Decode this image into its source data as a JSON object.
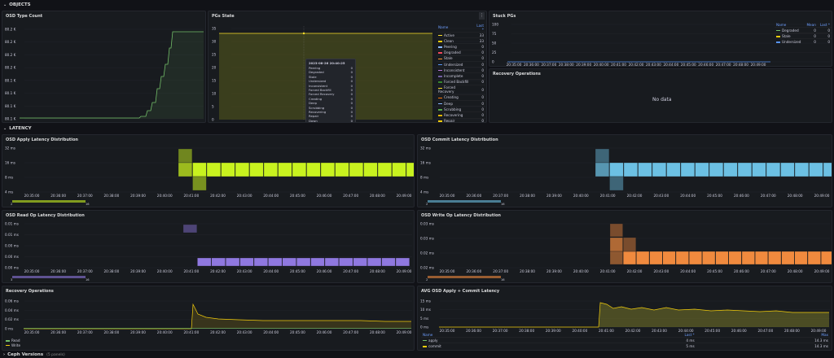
{
  "rows": {
    "objects": "OBJECTS",
    "latency": "LATENCY",
    "ceph_versions": "Ceph Versions",
    "ceph_versions_count": "(5 panels)"
  },
  "time_axis": {
    "short": [
      "20:35",
      "20:40",
      "20:45"
    ],
    "long": [
      "20:35:00",
      "20:36:00",
      "20:37:00",
      "20:38:00",
      "20:39:00",
      "20:40:00",
      "20:41:00",
      "20:42:00",
      "20:43:00",
      "20:44:00",
      "20:45:00",
      "20:46:00",
      "20:47:00",
      "20:48:00",
      "20:49:00"
    ]
  },
  "panels": {
    "osd_type_count": {
      "title": "OSD Type Count",
      "y_ticks": [
        "80.2 K",
        "80.2 K",
        "80.2 K",
        "80.2 K",
        "80.1 K",
        "80.1 K",
        "80.1 K",
        "80.1 K"
      ],
      "x_ticks": [
        "20:35",
        "20:40",
        "20:45"
      ],
      "line_color": "#73bf69"
    },
    "pgs_state": {
      "title": "PGs State",
      "y_ticks": [
        "35",
        "30",
        "25",
        "20",
        "15",
        "10",
        "5",
        "0"
      ],
      "x_ticks": [
        "20:35",
        "20:40",
        "20:45"
      ],
      "legend_header": [
        "Name",
        "Last *"
      ],
      "legend": [
        {
          "name": "Active",
          "value": "33",
          "color": "#fade2a"
        },
        {
          "name": "Clean",
          "value": "33",
          "color": "#f2cc0c"
        },
        {
          "name": "Peering",
          "value": "0",
          "color": "#8ab8ff"
        },
        {
          "name": "Degraded",
          "value": "0",
          "color": "#f2495c"
        },
        {
          "name": "Stale",
          "value": "0",
          "color": "#ff9830"
        },
        {
          "name": "Undersized",
          "value": "0",
          "color": "#5794f2"
        },
        {
          "name": "Inconsistent",
          "value": "0",
          "color": "#b877d9"
        },
        {
          "name": "Incomplete",
          "value": "0",
          "color": "#705da0"
        },
        {
          "name": "Forced Backfill",
          "value": "0",
          "color": "#37872d"
        },
        {
          "name": "Forced Recovery",
          "value": "0",
          "color": "#fade2a"
        },
        {
          "name": "Creating",
          "value": "0",
          "color": "#ff780a"
        },
        {
          "name": "Deep",
          "value": "0",
          "color": "#8ab8ff"
        },
        {
          "name": "Scrubbing",
          "value": "0",
          "color": "#56a64b"
        },
        {
          "name": "Recovering",
          "value": "0",
          "color": "#e0b400"
        },
        {
          "name": "Repair",
          "value": "0",
          "color": "#f2cc0c"
        },
        {
          "name": "Down",
          "value": "0",
          "color": "#c4162a"
        },
        {
          "name": "Peered",
          "value": "0",
          "color": "#e02f44"
        }
      ],
      "tooltip": {
        "time": "2023-08-26 20:40:25",
        "rows": [
          {
            "name": "Peering",
            "value": "0"
          },
          {
            "name": "Degraded",
            "value": "0"
          },
          {
            "name": "Stale",
            "value": "0"
          },
          {
            "name": "Undersized",
            "value": "0"
          },
          {
            "name": "Inconsistent",
            "value": "0"
          },
          {
            "name": "Forced Backfill",
            "value": "0"
          },
          {
            "name": "Forced Recovery",
            "value": "0"
          },
          {
            "name": "Creating",
            "value": "0"
          },
          {
            "name": "Deep",
            "value": "0"
          },
          {
            "name": "Scrubbing",
            "value": "0"
          },
          {
            "name": "Recovering",
            "value": "0"
          },
          {
            "name": "Repair",
            "value": "0"
          },
          {
            "name": "Down",
            "value": "0"
          },
          {
            "name": "Peered",
            "value": "0"
          },
          {
            "name": "Remapped",
            "value": "0"
          },
          {
            "name": "Backfill Toofull",
            "value": "0"
          },
          {
            "name": "Active",
            "value": "33"
          },
          {
            "name": "Clean",
            "value": "33"
          }
        ]
      },
      "menu_icon": "ellipsis-vertical-icon"
    },
    "stuck_pgs": {
      "title": "Stuck PGs",
      "y_ticks": [
        "100",
        "75",
        "50",
        "25",
        "0"
      ],
      "x_ticks": [
        "20:35:00",
        "20:36:00",
        "20:37:00",
        "20:38:00",
        "20:39:00",
        "20:40:00",
        "20:41:00",
        "20:42:00",
        "20:43:00",
        "20:44:00",
        "20:45:00",
        "20:46:00",
        "20:47:00",
        "20:48:00",
        "20:49:00"
      ],
      "legend_header": [
        "Name",
        "Mean",
        "Last *"
      ],
      "legend": [
        {
          "name": "Degraded",
          "mean": "0",
          "last": "0",
          "color": "#73bf69"
        },
        {
          "name": "Stale",
          "mean": "0",
          "last": "0",
          "color": "#f2cc0c"
        },
        {
          "name": "Undersized",
          "mean": "0",
          "last": "0",
          "color": "#5794f2"
        }
      ]
    },
    "recovery_ops_top": {
      "title": "Recovery Operations",
      "no_data": "No data"
    },
    "osd_apply": {
      "title": "OSD Apply Latency Distribution",
      "y_ticks": [
        "32 ms",
        "16 ms",
        "8 ms",
        "4 ms"
      ],
      "scale": [
        "2",
        "16"
      ],
      "color": "#c8f21f"
    },
    "osd_commit": {
      "title": "OSD Commit Latency Distribution",
      "y_ticks": [
        "32 ms",
        "16 ms",
        "8 ms",
        "4 ms"
      ],
      "scale": [
        "2",
        "16"
      ],
      "color": "#6cc0e3"
    },
    "osd_read": {
      "title": "OSD Read Op Latency Distribution",
      "y_ticks": [
        "0.01 ms",
        "0.01 ms",
        "0.00 ms",
        "0.00 ms",
        "0.00 ms"
      ],
      "scale": [
        "3",
        "16"
      ],
      "color": "#8f78e0"
    },
    "osd_write": {
      "title": "OSD Write Op Latency Distribution",
      "y_ticks": [
        "0.03 ms",
        "0.03 ms",
        "0.02 ms",
        "0.02 ms"
      ],
      "scale": [
        "2",
        "16"
      ],
      "color": "#f08a3e"
    },
    "recovery_ops": {
      "title": "Recovery Operations",
      "y_ticks": [
        "0.06 ms",
        "0.04 ms",
        "0.02 ms",
        "0 ms"
      ],
      "legend": [
        {
          "name": "Read",
          "color": "#73bf69"
        },
        {
          "name": "Write",
          "color": "#f2cc0c"
        }
      ]
    },
    "avg_latency": {
      "title": "AVG OSD Apply + Commit Latency",
      "y_ticks": [
        "15 ms",
        "10 ms",
        "5 ms",
        "0 ms"
      ],
      "legend_header": [
        "Name",
        "Last *",
        "Max"
      ],
      "legend": [
        {
          "name": "apply",
          "last": "4 ms",
          "max": "14.3 ms",
          "color": "#73bf69"
        },
        {
          "name": "commit",
          "last": "5 ms",
          "max": "14.3 ms",
          "color": "#f2cc0c"
        }
      ]
    }
  }
}
